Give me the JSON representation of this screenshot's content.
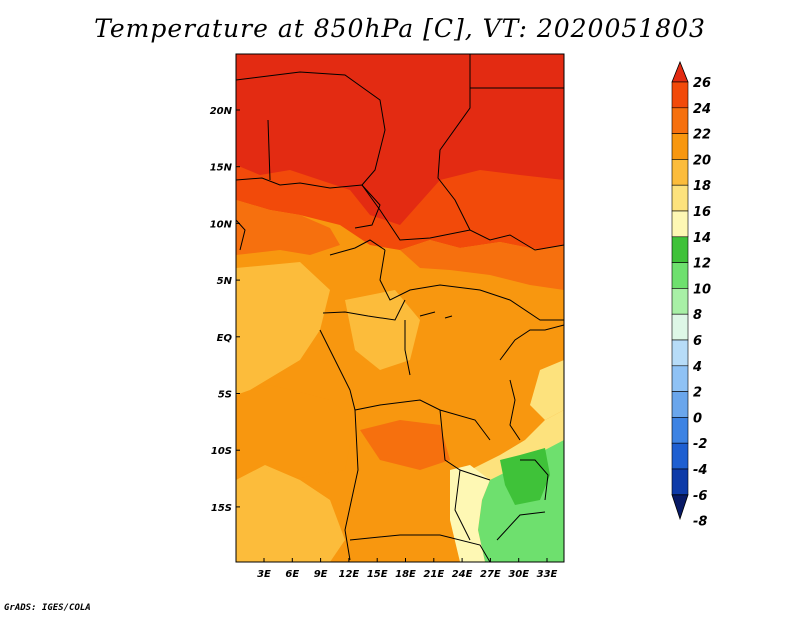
{
  "title": "Temperature at 850hPa [C], VT: 2020051803",
  "credit": "GrADS: IGES/COLA",
  "map": {
    "variable": "Temperature at 850hPa",
    "units": "C",
    "valid_time": "2020051803",
    "lat_ticks": [
      "20N",
      "15N",
      "10N",
      "5N",
      "EQ",
      "5S",
      "10S",
      "15S"
    ],
    "lon_ticks": [
      "3E",
      "6E",
      "9E",
      "12E",
      "15E",
      "18E",
      "21E",
      "24E",
      "27E",
      "30E",
      "33E"
    ]
  },
  "colorbar": {
    "labels": [
      "26",
      "24",
      "22",
      "20",
      "18",
      "16",
      "14",
      "12",
      "10",
      "8",
      "6",
      "4",
      "2",
      "0",
      "-2",
      "-4",
      "-6",
      "-8"
    ],
    "colors": [
      "#e32b12",
      "#f24a0a",
      "#f6700e",
      "#f8970f",
      "#fcbc3b",
      "#fde27d",
      "#fef8b4",
      "#3fc239",
      "#6ee06e",
      "#a8f0a6",
      "#def7e7",
      "#b7dcf8",
      "#8fc2f5",
      "#6aa6ec",
      "#3d83e3",
      "#1e5fd1",
      "#0d3aa8",
      "#081a66"
    ]
  }
}
